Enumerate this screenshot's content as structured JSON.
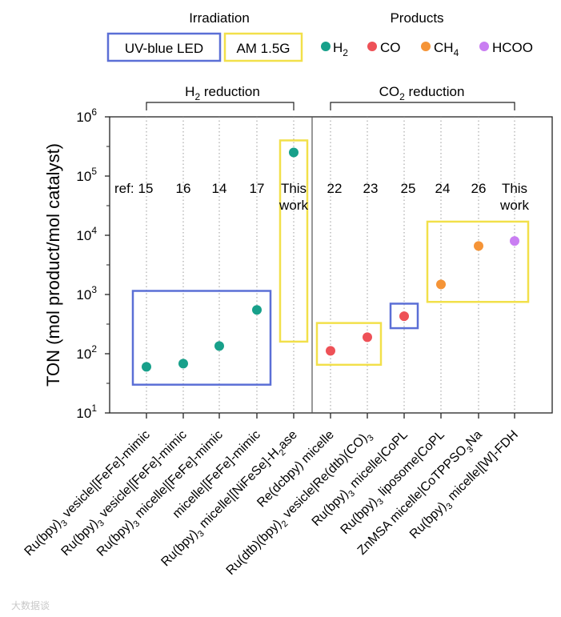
{
  "legend": {
    "irradiation_title": "Irradiation",
    "products_title": "Products",
    "irradiation_items": [
      {
        "label": "UV-blue LED",
        "color": "#5b6fd6"
      },
      {
        "label": "AM 1.5G",
        "color": "#f2e04a"
      }
    ],
    "product_items": [
      {
        "label": "H",
        "sub": "2",
        "color": "#17a08a"
      },
      {
        "label": "CO",
        "sub": "",
        "color": "#ee5157"
      },
      {
        "label": "CH",
        "sub": "4",
        "color": "#f59437"
      },
      {
        "label": "HCOO",
        "sub": "",
        "color": "#c97ef2"
      }
    ]
  },
  "groups": [
    {
      "label": "H",
      "sub": "2",
      "suffix": " reduction"
    },
    {
      "label": "CO",
      "sub": "2",
      "suffix": " reduction"
    }
  ],
  "ref_prefix": "ref:",
  "watermark": "大数据谈",
  "chart_data": {
    "type": "scatter",
    "ylabel": "TON (mol product/mol catalyst)",
    "yscale": "log",
    "ylim": [
      10,
      1000000
    ],
    "yticks": [
      {
        "value": 10,
        "base": "10",
        "exp": "1"
      },
      {
        "value": 100,
        "base": "10",
        "exp": "2"
      },
      {
        "value": 1000,
        "base": "10",
        "exp": "3"
      },
      {
        "value": 10000,
        "base": "10",
        "exp": "4"
      },
      {
        "value": 100000,
        "base": "10",
        "exp": "5"
      },
      {
        "value": 1000000,
        "base": "10",
        "exp": "6"
      }
    ],
    "grid": false,
    "points": [
      {
        "category": [
          "Ru(bpy)",
          "3",
          " vesicle|[FeFe]-mimic"
        ],
        "ref": [
          "15"
        ],
        "product": "H2",
        "value": 60,
        "irradiation": "UV-blue LED"
      },
      {
        "category": [
          "Ru(bpy)",
          "3",
          " vesicle|[FeFe]-mimic"
        ],
        "ref": [
          "16"
        ],
        "product": "H2",
        "value": 68,
        "irradiation": "UV-blue LED"
      },
      {
        "category": [
          "Ru(bpy)",
          "3",
          " micelle|[FeFe]-mimic"
        ],
        "ref": [
          "14"
        ],
        "product": "H2",
        "value": 135,
        "irradiation": "UV-blue LED"
      },
      {
        "category": [
          "micelle|[FeFe]-mimic"
        ],
        "ref": [
          "17"
        ],
        "product": "H2",
        "value": 550,
        "irradiation": "UV-blue LED"
      },
      {
        "category": [
          "Ru(bpy)",
          "3",
          " micelle|[NiFeSe]-H",
          "2",
          "ase"
        ],
        "ref": [
          "This",
          "work"
        ],
        "product": "H2",
        "value": 250000,
        "irradiation": "AM 1.5G"
      },
      {
        "category": [
          "Re(dcbpy) micelle"
        ],
        "ref": [
          "22"
        ],
        "product": "CO",
        "value": 112,
        "irradiation": "AM 1.5G"
      },
      {
        "category": [
          "Ru(dtb)(bpy)",
          "2",
          " vesicle|Re(dtb)(CO)",
          "3",
          ""
        ],
        "ref": [
          "23"
        ],
        "product": "CO",
        "value": 190,
        "irradiation": "AM 1.5G"
      },
      {
        "category": [
          "Ru(bpy)",
          "3",
          " micelle|CoPL"
        ],
        "ref": [
          "25"
        ],
        "product": "CO",
        "value": 430,
        "irradiation": "UV-blue LED"
      },
      {
        "category": [
          "Ru(bpy)",
          "3",
          " liposome|CoPL"
        ],
        "ref": [
          "24"
        ],
        "product": "CH4",
        "value": 1480,
        "irradiation": "AM 1.5G"
      },
      {
        "category": [
          "ZnMSA micelle|CoTPPSO",
          "3",
          "Na"
        ],
        "ref": [
          "26"
        ],
        "product": "CH4",
        "value": 6600,
        "irradiation": "AM 1.5G"
      },
      {
        "category": [
          "Ru(bpy)",
          "3",
          " micelle|[W]-FDH"
        ],
        "ref": [
          "This",
          "work"
        ],
        "product": "HCOO",
        "value": 8000,
        "irradiation": "AM 1.5G"
      }
    ],
    "irradiation_boxes": [
      {
        "irradiation": "UV-blue LED",
        "from": 0,
        "to": 3,
        "ymin": 30,
        "ymax": 1150
      },
      {
        "irradiation": "AM 1.5G",
        "from": 4,
        "to": 4,
        "ymin": 160,
        "ymax": 400000
      },
      {
        "irradiation": "AM 1.5G",
        "from": 5,
        "to": 6,
        "ymin": 65,
        "ymax": 330
      },
      {
        "irradiation": "UV-blue LED",
        "from": 7,
        "to": 7,
        "ymin": 270,
        "ymax": 700
      },
      {
        "irradiation": "AM 1.5G",
        "from": 8,
        "to": 10,
        "ymin": 750,
        "ymax": 17000
      }
    ],
    "product_colors": {
      "H2": "#17a08a",
      "CO": "#ee5157",
      "CH4": "#f59437",
      "HCOO": "#c97ef2"
    },
    "irradiation_colors": {
      "UV-blue LED": "#5b6fd6",
      "AM 1.5G": "#f2e04a"
    }
  }
}
